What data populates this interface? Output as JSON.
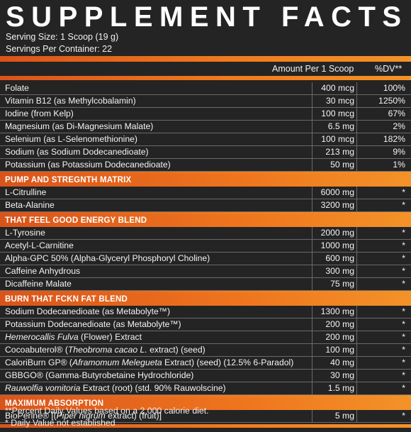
{
  "title": "SUPPLEMENT FACTS",
  "serving_size": "Serving Size: 1 Scoop (19 g)",
  "servings_per_container": "Servings Per Container: 22",
  "header": {
    "amount_label": "Amount Per 1 Scoop",
    "dv_label": "%DV**"
  },
  "vitamins": [
    {
      "name": "Folate",
      "amount": "400 mcg",
      "dv": "100%"
    },
    {
      "name": "Vitamin B12 (as Methylcobalamin)",
      "amount": "30 mcg",
      "dv": "1250%"
    },
    {
      "name": "Iodine (from Kelp)",
      "amount": "100 mcg",
      "dv": "67%"
    },
    {
      "name": "Magnesium (as Di-Magnesium Malate)",
      "amount": "6.5 mg",
      "dv": "2%"
    },
    {
      "name": "Selenium (as L-Selenomethionine)",
      "amount": "100 mcg",
      "dv": "182%"
    },
    {
      "name": "Sodium (as Sodium Dodecanedioate)",
      "amount": "213 mg",
      "dv": "9%"
    },
    {
      "name": "Potassium (as Potassium Dodecanedioate)",
      "amount": "50 mg",
      "dv": "1%"
    }
  ],
  "sections": [
    {
      "title": "PUMP AND STREGNTH MATRIX",
      "rows": [
        {
          "name": "L-Citrulline",
          "amount": "6000 mg",
          "dv": "*"
        },
        {
          "name": "Beta-Alanine",
          "amount": "3200 mg",
          "dv": "*"
        }
      ]
    },
    {
      "title": "THAT FEEL GOOD ENERGY BLEND",
      "rows": [
        {
          "name": "L-Tyrosine",
          "amount": "2000 mg",
          "dv": "*"
        },
        {
          "name": "Acetyl-L-Carnitine",
          "amount": "1000 mg",
          "dv": "*"
        },
        {
          "name": "Alpha-GPC 50% (Alpha-Glyceryl Phosphoryl Choline)",
          "amount": "600 mg",
          "dv": "*"
        },
        {
          "name": "Caffeine Anhydrous",
          "amount": "300 mg",
          "dv": "*"
        },
        {
          "name": "Dicaffeine Malate",
          "amount": "75 mg",
          "dv": "*"
        }
      ]
    },
    {
      "title": "BURN THAT FCKN FAT BLEND",
      "rows": [
        {
          "name": "Sodium Dodecanedioate (as Metabolyte™)",
          "amount": "1300 mg",
          "dv": "*"
        },
        {
          "name": "Potassium Dodecanedioate (as Metabolyte™)",
          "amount": "200 mg",
          "dv": "*"
        },
        {
          "name": "Hemerocallis Fulva (Flower) Extract",
          "amount": "200 mg",
          "dv": "*"
        },
        {
          "name": "Cocoabuterol® (Theobroma cacao L. extract) (seed)",
          "amount": "100 mg",
          "dv": "*"
        },
        {
          "name": "CaloriBurn GP® (Aframomum Melegueta Extract) (seed) (12.5% 6-Paradol)",
          "amount": "40 mg",
          "dv": "*"
        },
        {
          "name": "GBBGO® (Gamma-Butyrobetaine Hydrochloride)",
          "amount": "30 mg",
          "dv": "*"
        },
        {
          "name": "Rauwolfia vomitoria Extract (root) (std. 90% Rauwolscine)",
          "amount": "1.5 mg",
          "dv": "*"
        }
      ]
    },
    {
      "title": "MAXIMUM ABSORPTION",
      "rows": [
        {
          "name": "BioPerine® [(Piper nigrum extract) (fruit)]",
          "amount": "5 mg",
          "dv": "*"
        }
      ]
    }
  ],
  "footnotes": {
    "dv_note": "**Percent Daily Values based on a 2,000 calorie diet.",
    "not_established": "* Daily Value not established"
  },
  "colors": {
    "background": "#242424",
    "accent_start": "#d9541b",
    "accent_end": "#f39228",
    "rule": "#6a6a6a"
  }
}
